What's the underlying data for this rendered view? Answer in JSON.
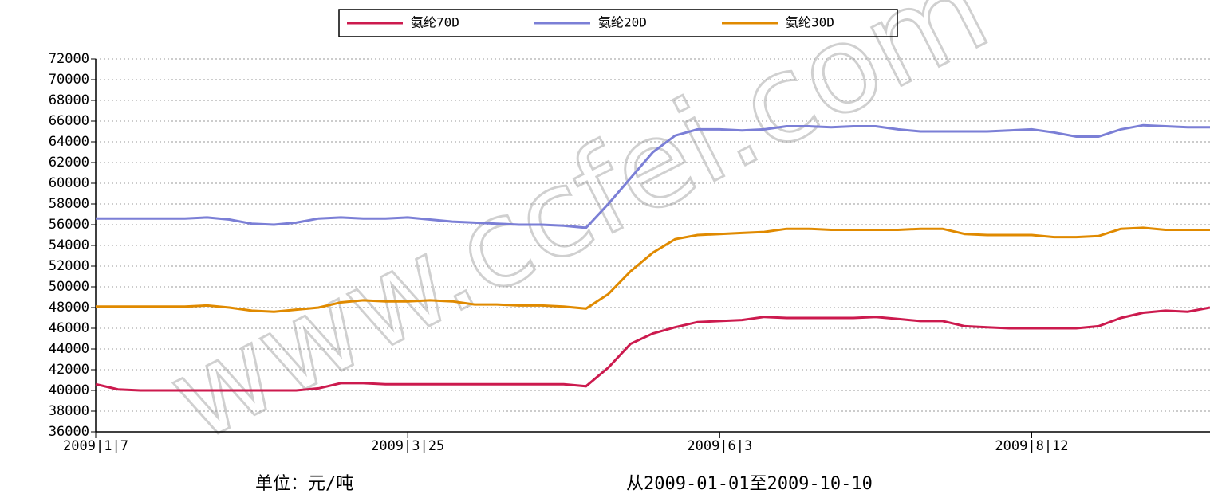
{
  "chart_data": {
    "type": "line",
    "watermark": "www.ccfei.com",
    "unit_note": "单位：元/吨",
    "range_note": "从2009-01-01至2009-10-10",
    "categories": [
      "2009|1|7",
      null,
      null,
      null,
      null,
      null,
      null,
      null,
      null,
      null,
      null,
      null,
      null,
      null,
      "2009|3|25",
      null,
      null,
      null,
      null,
      null,
      null,
      null,
      null,
      null,
      null,
      null,
      null,
      null,
      "2009|6|3",
      null,
      null,
      null,
      null,
      null,
      null,
      null,
      null,
      null,
      null,
      null,
      null,
      null,
      "2009|8|12",
      null,
      null,
      null,
      null,
      null,
      null,
      null,
      null
    ],
    "series": [
      {
        "name": "氨纶70D",
        "color": "#cc1a4e",
        "values": [
          40600,
          40100,
          40000,
          40000,
          40000,
          40000,
          40000,
          40000,
          40000,
          40000,
          40200,
          40700,
          40700,
          40600,
          40600,
          40600,
          40600,
          40600,
          40600,
          40600,
          40600,
          40600,
          40400,
          42200,
          44500,
          45500,
          46100,
          46600,
          46700,
          46800,
          47100,
          47000,
          47000,
          47000,
          47000,
          47100,
          46900,
          46700,
          46700,
          46200,
          46100,
          46000,
          46000,
          46000,
          46000,
          46200,
          47000,
          47500,
          47700,
          47600,
          48000
        ]
      },
      {
        "name": "氨纶20D",
        "color": "#7b7fd6",
        "values": [
          56600,
          56600,
          56600,
          56600,
          56600,
          56700,
          56500,
          56100,
          56000,
          56200,
          56600,
          56700,
          56600,
          56600,
          56700,
          56500,
          56300,
          56200,
          56100,
          56000,
          56000,
          55900,
          55700,
          58000,
          60500,
          63000,
          64600,
          65200,
          65200,
          65100,
          65200,
          65500,
          65500,
          65400,
          65500,
          65500,
          65200,
          65000,
          65000,
          65000,
          65000,
          65100,
          65200,
          64900,
          64500,
          64500,
          65200,
          65600,
          65500,
          65400,
          65400
        ]
      },
      {
        "name": "氨纶30D",
        "color": "#e08a00",
        "values": [
          48100,
          48100,
          48100,
          48100,
          48100,
          48200,
          48000,
          47700,
          47600,
          47800,
          48000,
          48500,
          48700,
          48600,
          48600,
          48700,
          48600,
          48300,
          48300,
          48200,
          48200,
          48100,
          47900,
          49300,
          51500,
          53300,
          54600,
          55000,
          55100,
          55200,
          55300,
          55600,
          55600,
          55500,
          55500,
          55500,
          55500,
          55600,
          55600,
          55100,
          55000,
          55000,
          55000,
          54800,
          54800,
          54900,
          55600,
          55700,
          55500,
          55500,
          55500
        ]
      }
    ],
    "ylim": [
      36000,
      72000
    ],
    "yticks": [
      36000,
      38000,
      40000,
      42000,
      44000,
      46000,
      48000,
      50000,
      52000,
      54000,
      56000,
      58000,
      60000,
      62000,
      64000,
      66000,
      68000,
      70000,
      72000
    ],
    "grid": true,
    "legend": "top"
  }
}
